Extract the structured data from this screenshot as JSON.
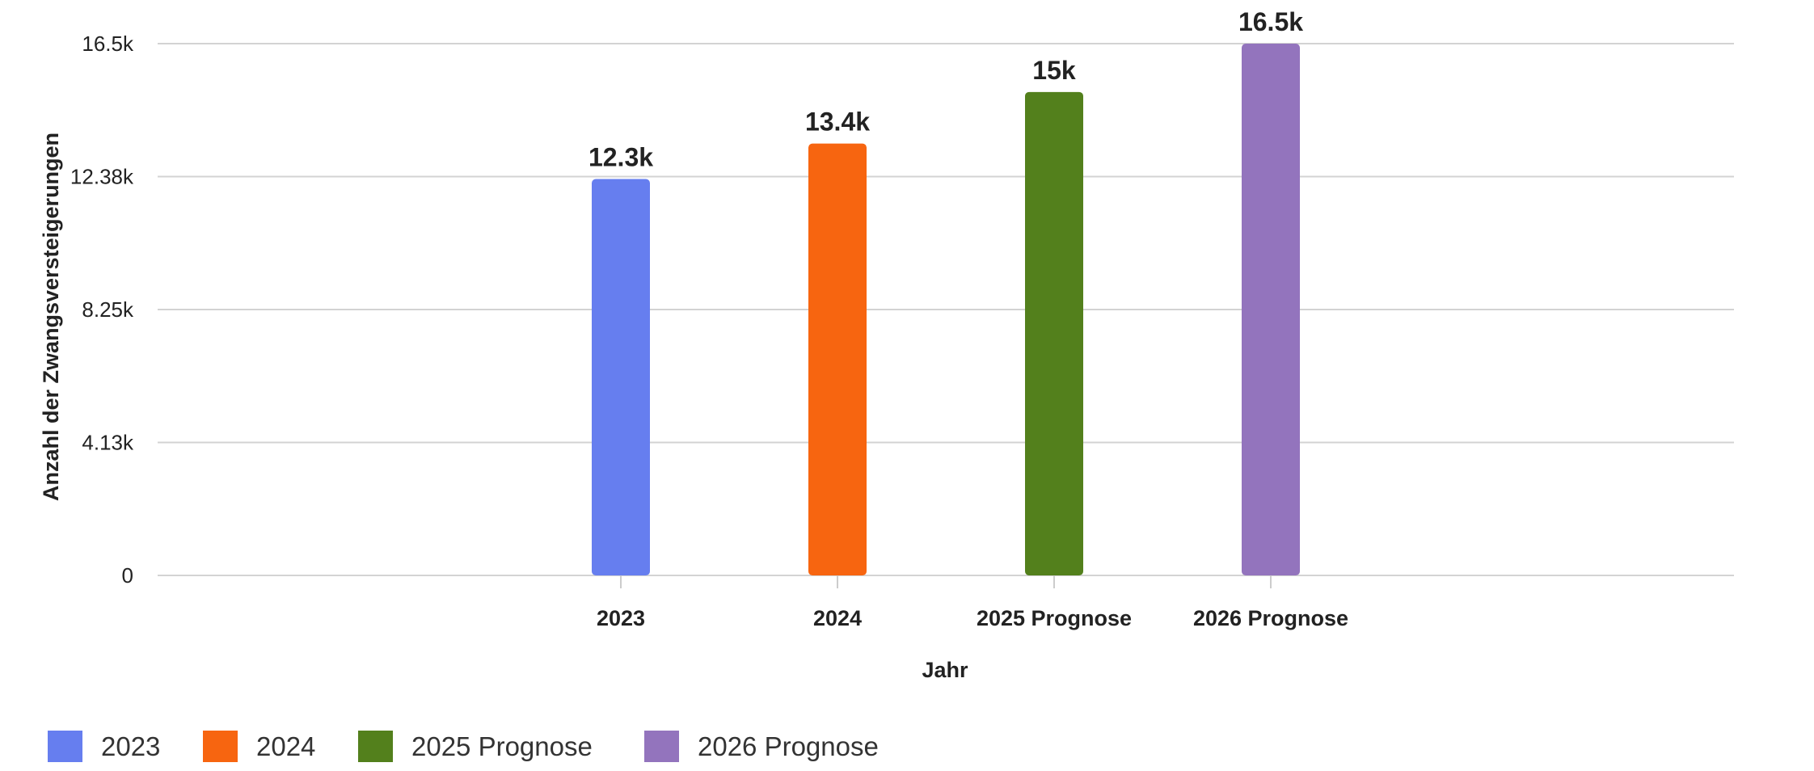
{
  "chart_data": {
    "type": "bar",
    "title": "",
    "xlabel": "Jahr",
    "ylabel": "Anzahl der Zwangsversteigerungen",
    "categories": [
      "2023",
      "2024",
      "2025 Prognose",
      "2026 Prognose"
    ],
    "values": [
      12300,
      13400,
      15000,
      16500
    ],
    "value_labels": [
      "12.3k",
      "13.4k",
      "15k",
      "16.5k"
    ],
    "colors": [
      "#667eef",
      "#f76510",
      "#53801c",
      "#9374bd"
    ],
    "ylim": [
      0,
      16500
    ],
    "yticks": [
      0,
      4125,
      8250,
      12375,
      16500
    ],
    "ytick_labels": [
      "0",
      "4.13k",
      "8.25k",
      "12.38k",
      "16.5k"
    ],
    "grid": true,
    "legend": {
      "position": "bottom-left",
      "entries": [
        "2023",
        "2024",
        "2025 Prognose",
        "2026 Prognose"
      ]
    }
  }
}
